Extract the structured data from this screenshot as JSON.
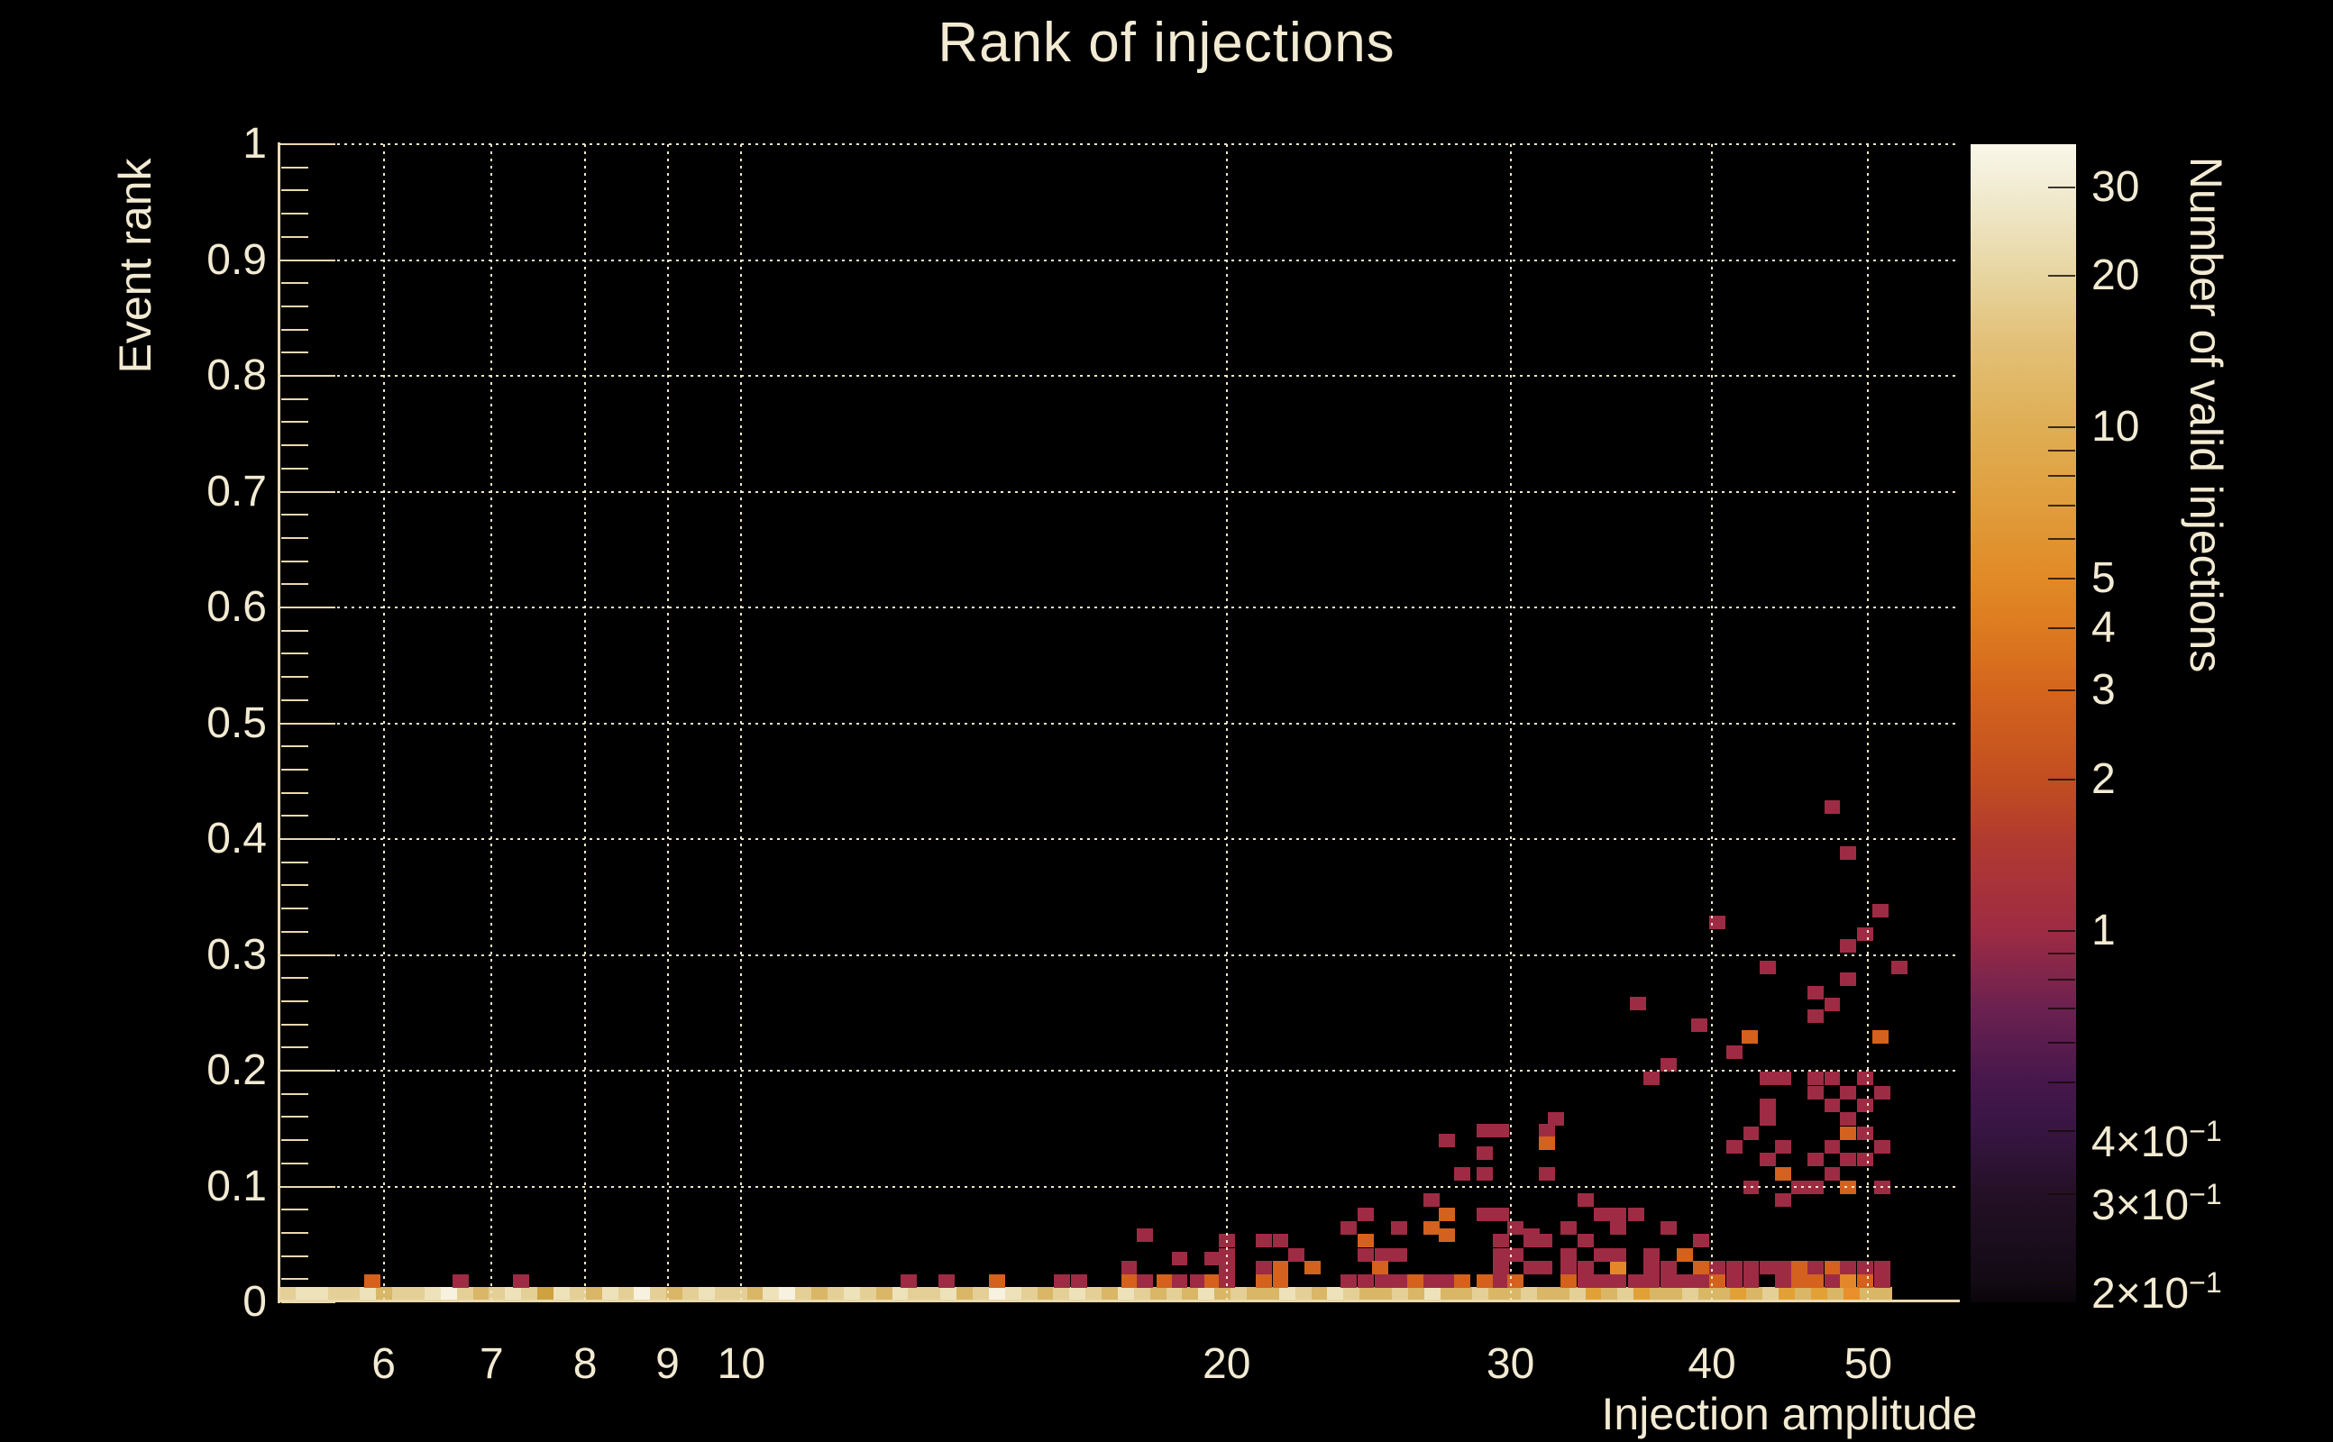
{
  "chart_data": {
    "type": "heatmap",
    "title": "Rank of injections",
    "xlabel": "Injection amplitude",
    "ylabel": "Event rank",
    "zlabel": "Number of valid injections",
    "x_axis": {
      "scale": "log",
      "min": 5.17,
      "max": 56.7,
      "major_ticks": [
        {
          "v": 6,
          "label": "6"
        },
        {
          "v": 7,
          "label": "7"
        },
        {
          "v": 8,
          "label": "8"
        },
        {
          "v": 9,
          "label": "9"
        },
        {
          "v": 10,
          "label": "10"
        },
        {
          "v": 20,
          "label": "20"
        },
        {
          "v": 30,
          "label": "30"
        },
        {
          "v": 40,
          "label": "40"
        },
        {
          "v": 50,
          "label": "50"
        }
      ],
      "grid": "dotted"
    },
    "y_axis": {
      "scale": "linear",
      "min": 0,
      "max": 1,
      "minor_step": 0.02,
      "major_ticks": [
        {
          "v": 0,
          "label": "0"
        },
        {
          "v": 0.1,
          "label": "0.1"
        },
        {
          "v": 0.2,
          "label": "0.2"
        },
        {
          "v": 0.3,
          "label": "0.3"
        },
        {
          "v": 0.4,
          "label": "0.4"
        },
        {
          "v": 0.5,
          "label": "0.5"
        },
        {
          "v": 0.6,
          "label": "0.6"
        },
        {
          "v": 0.7,
          "label": "0.7"
        },
        {
          "v": 0.8,
          "label": "0.8"
        },
        {
          "v": 0.9,
          "label": "0.9"
        },
        {
          "v": 1,
          "label": "1"
        }
      ],
      "grid": "dotted"
    },
    "z_axis": {
      "scale": "log",
      "min": 0.183,
      "max": 36.5,
      "tick_values": [
        0.2,
        0.3,
        0.4,
        0.5,
        0.6,
        0.7,
        0.8,
        0.9,
        1,
        2,
        3,
        4,
        5,
        6,
        7,
        8,
        9,
        10,
        20,
        30
      ],
      "labeled_ticks": [
        {
          "v": 30,
          "label": "30",
          "sup": ""
        },
        {
          "v": 20,
          "label": "20",
          "sup": ""
        },
        {
          "v": 10,
          "label": "10",
          "sup": ""
        },
        {
          "v": 5,
          "label": "5",
          "sup": ""
        },
        {
          "v": 4,
          "label": "4",
          "sup": ""
        },
        {
          "v": 3,
          "label": "3",
          "sup": ""
        },
        {
          "v": 2,
          "label": "2",
          "sup": ""
        },
        {
          "v": 1,
          "label": "1",
          "sup": ""
        },
        {
          "v": 0.4,
          "label": "4×10",
          "sup": "−1"
        },
        {
          "v": 0.3,
          "label": "3×10",
          "sup": "−1"
        },
        {
          "v": 0.2,
          "label": "2×10",
          "sup": "−1"
        }
      ]
    },
    "palette_stops": [
      [
        0,
        "#faf7ea"
      ],
      [
        3.7,
        "#f2ecd4"
      ],
      [
        11.4,
        "#e7d5a0"
      ],
      [
        16.8,
        "#e3c17a"
      ],
      [
        24.4,
        "#dfae54"
      ],
      [
        31.2,
        "#e09d3c"
      ],
      [
        37.5,
        "#e18a26"
      ],
      [
        41.7,
        "#dd7b20"
      ],
      [
        47.2,
        "#d4651d"
      ],
      [
        54.8,
        "#c24e20"
      ],
      [
        60.2,
        "#b13a30"
      ],
      [
        67.9,
        "#9e2b44"
      ],
      [
        74.6,
        "#6b2150"
      ],
      [
        81,
        "#46174b"
      ],
      [
        85.2,
        "#371543"
      ],
      [
        90.6,
        "#241026"
      ],
      [
        98.3,
        "#120a14"
      ],
      [
        100,
        "#0a0509"
      ]
    ],
    "colors": {
      "background": "#000000",
      "text": "#f2ead2",
      "axis": "#ead9ae",
      "grid": "#efe6c8",
      "band_shades": {
        "W": "#f7f2df",
        "C": "#eee2ba",
        "T": "#e4cf96",
        "G": "#d9b766",
        "D": "#cda23f",
        "O": "#e2a136",
        "B": "#e98f2b"
      },
      "cell_levels": {
        "1": "#9e2b44",
        "2": "#b84038",
        "3": "#d4611d",
        "4": "#e2882a"
      }
    },
    "bottom_row": {
      "amp_min": 5.17,
      "amp_max": 51.7,
      "rank": 0.006,
      "bins": [
        "T",
        "C",
        "C",
        "T",
        "T",
        "C",
        "G",
        "T",
        "T",
        "C",
        "W",
        "T",
        "G",
        "T",
        "C",
        "T",
        "D",
        "C",
        "T",
        "G",
        "C",
        "T",
        "W",
        "T",
        "G",
        "T",
        "C",
        "T",
        "T",
        "G",
        "C",
        "W",
        "T",
        "G",
        "T",
        "C",
        "T",
        "G",
        "C",
        "T",
        "T",
        "C",
        "G",
        "T",
        "W",
        "C",
        "T",
        "G",
        "T",
        "C",
        "T",
        "G",
        "C",
        "T",
        "G",
        "T",
        "G",
        "C",
        "G",
        "T",
        "G",
        "G",
        "C",
        "T",
        "G",
        "C",
        "T",
        "G",
        "G",
        "T",
        "G",
        "C",
        "G",
        "G",
        "T",
        "G",
        "G",
        "T",
        "G",
        "G",
        "T",
        "O",
        "G",
        "T",
        "O",
        "G",
        "G",
        "T",
        "G",
        "G",
        "O",
        "G",
        "T",
        "O",
        "G",
        "O",
        "G",
        "B",
        "G",
        "G"
      ]
    },
    "cells": [
      [
        5.9,
        0.018,
        3
      ],
      [
        6.7,
        0.018,
        1
      ],
      [
        7.3,
        0.018,
        1
      ],
      [
        12.7,
        0.018,
        1
      ],
      [
        13.4,
        0.018,
        1
      ],
      [
        14.4,
        0.018,
        3
      ],
      [
        15.8,
        0.018,
        1
      ],
      [
        16.2,
        0.018,
        1
      ],
      [
        17.4,
        0.03,
        1
      ],
      [
        17.4,
        0.018,
        3
      ],
      [
        17.8,
        0.018,
        1
      ],
      [
        17.8,
        0.058,
        1
      ],
      [
        18.3,
        0.018,
        3
      ],
      [
        18.7,
        0.018,
        1
      ],
      [
        19.2,
        0.018,
        1
      ],
      [
        18.7,
        0.038,
        1
      ],
      [
        19.6,
        0.038,
        1
      ],
      [
        19.6,
        0.018,
        3
      ],
      [
        20.0,
        0.018,
        1
      ],
      [
        20.0,
        0.03,
        1
      ],
      [
        20.0,
        0.041,
        1
      ],
      [
        20.0,
        0.053,
        1
      ],
      [
        21.1,
        0.053,
        1
      ],
      [
        21.6,
        0.053,
        1
      ],
      [
        21.1,
        0.018,
        3
      ],
      [
        21.6,
        0.018,
        3
      ],
      [
        21.1,
        0.03,
        1
      ],
      [
        21.6,
        0.03,
        3
      ],
      [
        22.6,
        0.03,
        3
      ],
      [
        22.1,
        0.041,
        1
      ],
      [
        23.8,
        0.064,
        1
      ],
      [
        24.4,
        0.076,
        1
      ],
      [
        24.4,
        0.053,
        3
      ],
      [
        24.4,
        0.041,
        1
      ],
      [
        25.0,
        0.041,
        1
      ],
      [
        25.6,
        0.041,
        1
      ],
      [
        23.8,
        0.018,
        1
      ],
      [
        24.4,
        0.018,
        1
      ],
      [
        25.0,
        0.018,
        1
      ],
      [
        25.6,
        0.018,
        1
      ],
      [
        26.2,
        0.018,
        3
      ],
      [
        26.8,
        0.018,
        1
      ],
      [
        27.4,
        0.018,
        1
      ],
      [
        24.9,
        0.03,
        3
      ],
      [
        25.6,
        0.064,
        1
      ],
      [
        26.8,
        0.064,
        3
      ],
      [
        26.8,
        0.088,
        1
      ],
      [
        27.4,
        0.076,
        3
      ],
      [
        27.4,
        0.058,
        3
      ],
      [
        28.9,
        0.076,
        1
      ],
      [
        29.6,
        0.076,
        1
      ],
      [
        30.2,
        0.064,
        1
      ],
      [
        30.9,
        0.058,
        1
      ],
      [
        29.6,
        0.053,
        1
      ],
      [
        30.9,
        0.053,
        1
      ],
      [
        31.5,
        0.053,
        1
      ],
      [
        29.6,
        0.018,
        1
      ],
      [
        29.6,
        0.03,
        1
      ],
      [
        29.6,
        0.041,
        1
      ],
      [
        30.9,
        0.03,
        1
      ],
      [
        31.5,
        0.03,
        1
      ],
      [
        28.0,
        0.018,
        3
      ],
      [
        28.9,
        0.018,
        3
      ],
      [
        30.2,
        0.018,
        3
      ],
      [
        30.2,
        0.041,
        1
      ],
      [
        28.0,
        0.111,
        1
      ],
      [
        28.9,
        0.111,
        1
      ],
      [
        31.6,
        0.111,
        1
      ],
      [
        27.4,
        0.14,
        1
      ],
      [
        28.9,
        0.129,
        1
      ],
      [
        28.9,
        0.148,
        1
      ],
      [
        29.6,
        0.148,
        1
      ],
      [
        31.6,
        0.148,
        1
      ],
      [
        31.6,
        0.137,
        3
      ],
      [
        32.0,
        0.158,
        1
      ],
      [
        32.6,
        0.018,
        3
      ],
      [
        33.4,
        0.018,
        1
      ],
      [
        34.2,
        0.018,
        1
      ],
      [
        35.0,
        0.018,
        1
      ],
      [
        35.9,
        0.018,
        1
      ],
      [
        36.7,
        0.018,
        1
      ],
      [
        37.6,
        0.018,
        1
      ],
      [
        38.5,
        0.018,
        1
      ],
      [
        39.4,
        0.018,
        1
      ],
      [
        40.3,
        0.018,
        3
      ],
      [
        41.3,
        0.018,
        1
      ],
      [
        42.3,
        0.018,
        1
      ],
      [
        44.3,
        0.018,
        1
      ],
      [
        45.3,
        0.018,
        3
      ],
      [
        46.4,
        0.018,
        3
      ],
      [
        47.5,
        0.018,
        1
      ],
      [
        48.6,
        0.018,
        4
      ],
      [
        49.8,
        0.018,
        3
      ],
      [
        51.0,
        0.018,
        1
      ],
      [
        32.6,
        0.03,
        1
      ],
      [
        33.4,
        0.03,
        1
      ],
      [
        35.0,
        0.03,
        4
      ],
      [
        36.7,
        0.03,
        1
      ],
      [
        37.6,
        0.03,
        1
      ],
      [
        39.4,
        0.03,
        3
      ],
      [
        40.3,
        0.03,
        1
      ],
      [
        41.3,
        0.03,
        1
      ],
      [
        42.3,
        0.03,
        1
      ],
      [
        43.3,
        0.03,
        1
      ],
      [
        44.3,
        0.03,
        1
      ],
      [
        45.3,
        0.03,
        3
      ],
      [
        46.4,
        0.03,
        1
      ],
      [
        47.5,
        0.03,
        3
      ],
      [
        48.6,
        0.03,
        1
      ],
      [
        49.8,
        0.03,
        1
      ],
      [
        51.0,
        0.03,
        1
      ],
      [
        32.6,
        0.041,
        1
      ],
      [
        34.2,
        0.041,
        1
      ],
      [
        35.0,
        0.041,
        1
      ],
      [
        36.7,
        0.041,
        1
      ],
      [
        38.5,
        0.041,
        3
      ],
      [
        33.4,
        0.053,
        1
      ],
      [
        39.4,
        0.053,
        1
      ],
      [
        32.6,
        0.064,
        1
      ],
      [
        35.0,
        0.064,
        1
      ],
      [
        37.6,
        0.064,
        1
      ],
      [
        34.2,
        0.076,
        1
      ],
      [
        35.0,
        0.076,
        1
      ],
      [
        35.9,
        0.076,
        1
      ],
      [
        33.4,
        0.088,
        1
      ],
      [
        44.3,
        0.088,
        1
      ],
      [
        42.3,
        0.099,
        1
      ],
      [
        45.3,
        0.099,
        1
      ],
      [
        46.4,
        0.099,
        1
      ],
      [
        48.6,
        0.099,
        3
      ],
      [
        51.0,
        0.099,
        1
      ],
      [
        44.3,
        0.111,
        3
      ],
      [
        47.5,
        0.111,
        1
      ],
      [
        43.3,
        0.123,
        1
      ],
      [
        46.4,
        0.123,
        1
      ],
      [
        48.6,
        0.123,
        1
      ],
      [
        49.8,
        0.123,
        1
      ],
      [
        41.3,
        0.134,
        1
      ],
      [
        44.3,
        0.134,
        1
      ],
      [
        47.5,
        0.134,
        1
      ],
      [
        51.0,
        0.134,
        1
      ],
      [
        42.3,
        0.146,
        1
      ],
      [
        48.6,
        0.146,
        3
      ],
      [
        49.8,
        0.146,
        1
      ],
      [
        43.3,
        0.158,
        1
      ],
      [
        48.6,
        0.158,
        1
      ],
      [
        43.3,
        0.17,
        1
      ],
      [
        47.5,
        0.17,
        1
      ],
      [
        49.8,
        0.17,
        1
      ],
      [
        46.4,
        0.181,
        1
      ],
      [
        48.6,
        0.181,
        1
      ],
      [
        51.0,
        0.181,
        1
      ],
      [
        36.7,
        0.193,
        1
      ],
      [
        43.3,
        0.193,
        1
      ],
      [
        44.3,
        0.193,
        1
      ],
      [
        46.4,
        0.193,
        1
      ],
      [
        47.5,
        0.193,
        1
      ],
      [
        49.8,
        0.193,
        1
      ],
      [
        37.6,
        0.205,
        1
      ],
      [
        41.3,
        0.216,
        1
      ],
      [
        42.2,
        0.229,
        3
      ],
      [
        50.9,
        0.229,
        3
      ],
      [
        39.3,
        0.239,
        1
      ],
      [
        46.4,
        0.247,
        1
      ],
      [
        47.5,
        0.257,
        1
      ],
      [
        36.0,
        0.258,
        1
      ],
      [
        46.4,
        0.267,
        1
      ],
      [
        48.6,
        0.279,
        1
      ],
      [
        43.3,
        0.289,
        1
      ],
      [
        52.3,
        0.289,
        1
      ],
      [
        48.6,
        0.308,
        1
      ],
      [
        49.8,
        0.318,
        1
      ],
      [
        40.3,
        0.328,
        1
      ],
      [
        50.9,
        0.338,
        1
      ],
      [
        48.6,
        0.388,
        1
      ],
      [
        47.5,
        0.428,
        1
      ]
    ]
  }
}
